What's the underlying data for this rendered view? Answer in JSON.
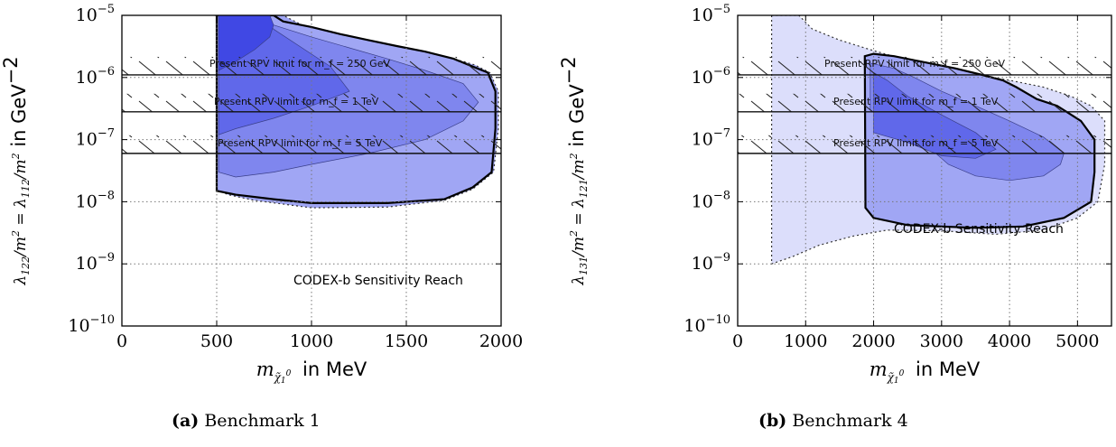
{
  "chart_data": [
    {
      "type": "area",
      "panel": "a",
      "caption_label": "(a)",
      "caption_text": "Benchmark 1",
      "xlabel": "m_{\\tilde\\chi_1^0} in MeV",
      "ylabel": "\\lambda_{122}/m_{\\tilde f}^2 = \\lambda_{112}/m_{\\tilde f}^2 in GeV^{-2}",
      "xlim": [
        0,
        2000
      ],
      "ylim": [
        1e-10,
        1e-05
      ],
      "yscale": "log",
      "grid": true,
      "x_ticks": [
        "0",
        "500",
        "1000",
        "1500",
        "2000"
      ],
      "y_ticks": [
        "10^-10",
        "10^-9",
        "10^-8",
        "10^-7",
        "10^-6",
        "10^-5"
      ],
      "annotation": "CODEX-b Sensitivity Reach",
      "limits": [
        {
          "label": "Present RPV limit for m_f = 250 GeV",
          "y": 1.1e-06
        },
        {
          "label": "Present RPV limit for m_f = 1 TeV",
          "y": 2.8e-07
        },
        {
          "label": "Present RPV limit for m_f = 5 TeV",
          "y": 6e-08
        }
      ],
      "regions": [
        {
          "level": "outer-dotted",
          "color": "#a0a6f4",
          "points": [
            [
              490,
              1e-05
            ],
            [
              500,
              1e-05
            ],
            [
              500,
              1.6e-08
            ],
            [
              560,
              1.3e-08
            ],
            [
              700,
              1.05e-08
            ],
            [
              1000,
              8e-09
            ],
            [
              1400,
              8.2e-09
            ],
            [
              1700,
              1.05e-08
            ],
            [
              1850,
              1.6e-08
            ],
            [
              1960,
              3e-08
            ],
            [
              1985,
              1.5e-07
            ],
            [
              1985,
              6e-07
            ],
            [
              1940,
              1.2e-06
            ],
            [
              1860,
              1.6e-06
            ],
            [
              1700,
              2.2e-06
            ],
            [
              1500,
              3e-06
            ],
            [
              1300,
              3.8e-06
            ],
            [
              1100,
              5e-06
            ],
            [
              950,
              7e-06
            ],
            [
              850,
              1e-05
            ]
          ]
        },
        {
          "level": "solid-boundary",
          "color": "#a0a6f4",
          "points": [
            [
              500,
              1e-05
            ],
            [
              500,
              1.5e-08
            ],
            [
              600,
              1.3e-08
            ],
            [
              800,
              1.1e-08
            ],
            [
              1000,
              9.5e-09
            ],
            [
              1400,
              9.5e-09
            ],
            [
              1700,
              1.1e-08
            ],
            [
              1850,
              1.7e-08
            ],
            [
              1950,
              3e-08
            ],
            [
              1970,
              1.5e-07
            ],
            [
              1970,
              6e-07
            ],
            [
              1930,
              1.2e-06
            ],
            [
              1850,
              1.5e-06
            ],
            [
              1750,
              2e-06
            ],
            [
              1600,
              2.6e-06
            ],
            [
              1450,
              3.2e-06
            ],
            [
              1300,
              4e-06
            ],
            [
              1150,
              5e-06
            ],
            [
              1000,
              6.5e-06
            ],
            [
              850,
              8e-06
            ],
            [
              800,
              1e-05
            ]
          ]
        },
        {
          "level": "middle",
          "color": "#7f86ee",
          "points": [
            [
              510,
              1e-05
            ],
            [
              510,
              3e-08
            ],
            [
              600,
              2.5e-08
            ],
            [
              800,
              3e-08
            ],
            [
              1000,
              4e-08
            ],
            [
              1300,
              6e-08
            ],
            [
              1600,
              1e-07
            ],
            [
              1800,
              2e-07
            ],
            [
              1880,
              4e-07
            ],
            [
              1800,
              8e-07
            ],
            [
              1600,
              1.3e-06
            ],
            [
              1400,
              2e-06
            ],
            [
              1200,
              3e-06
            ],
            [
              1000,
              4.5e-06
            ],
            [
              800,
              7e-06
            ],
            [
              700,
              1e-05
            ]
          ]
        },
        {
          "level": "inner",
          "color": "#6068ea",
          "points": [
            [
              510,
              1e-05
            ],
            [
              510,
              1.2e-07
            ],
            [
              600,
              1.5e-07
            ],
            [
              800,
              2.2e-07
            ],
            [
              1000,
              3.5e-07
            ],
            [
              1200,
              6e-07
            ],
            [
              1100,
              1.5e-06
            ],
            [
              950,
              3e-06
            ],
            [
              800,
              6e-06
            ],
            [
              720,
              1e-05
            ]
          ]
        },
        {
          "level": "core",
          "color": "#4048e4",
          "points": [
            [
              510,
              1e-05
            ],
            [
              510,
              1.3e-06
            ],
            [
              600,
              1.8e-06
            ],
            [
              700,
              2.8e-06
            ],
            [
              780,
              4.5e-06
            ],
            [
              800,
              7e-06
            ],
            [
              780,
              1e-05
            ]
          ]
        }
      ]
    },
    {
      "type": "area",
      "panel": "b",
      "caption_label": "(b)",
      "caption_text": "Benchmark 4",
      "xlabel": "m_{\\tilde\\chi_1^0} in MeV",
      "ylabel": "\\lambda_{131}/m_{\\tilde f}^2 = \\lambda_{121}/m_{\\tilde f}^2 in GeV^{-2}",
      "xlim": [
        0,
        5500
      ],
      "ylim": [
        1e-10,
        1e-05
      ],
      "yscale": "log",
      "grid": true,
      "x_ticks": [
        "0",
        "1000",
        "2000",
        "3000",
        "4000",
        "5000"
      ],
      "y_ticks": [
        "10^-10",
        "10^-9",
        "10^-8",
        "10^-7",
        "10^-6",
        "10^-5"
      ],
      "annotation": "CODEX-b Sensitivity Reach",
      "limits": [
        {
          "label": "Present RPV limit for m_f = 250 GeV",
          "y": 1.1e-06
        },
        {
          "label": "Present RPV limit for m_f = 1 TeV",
          "y": 2.8e-07
        },
        {
          "label": "Present RPV limit for m_f = 5 TeV",
          "y": 6e-08
        }
      ],
      "regions": [
        {
          "level": "outer-dotted",
          "color": "#dcdefb",
          "points": [
            [
              500,
              1e-05
            ],
            [
              500,
              1e-09
            ],
            [
              800,
              1.3e-09
            ],
            [
              1200,
              2e-09
            ],
            [
              1700,
              2.8e-09
            ],
            [
              2200,
              3.5e-09
            ],
            [
              3000,
              3.4e-09
            ],
            [
              3800,
              3e-09
            ],
            [
              4500,
              3.5e-09
            ],
            [
              5000,
              5.5e-09
            ],
            [
              5300,
              1e-08
            ],
            [
              5400,
              4e-08
            ],
            [
              5400,
              2e-07
            ],
            [
              5200,
              3.5e-07
            ],
            [
              4900,
              5e-07
            ],
            [
              4500,
              7e-07
            ],
            [
              4000,
              9e-07
            ],
            [
              3500,
              1.1e-06
            ],
            [
              3000,
              1.4e-06
            ],
            [
              2500,
              1.9e-06
            ],
            [
              2000,
              2.7e-06
            ],
            [
              1500,
              4e-06
            ],
            [
              1100,
              6e-06
            ],
            [
              900,
              1e-05
            ]
          ]
        },
        {
          "level": "solid-boundary",
          "color": "#a0a6f4",
          "points": [
            [
              1870,
              2.2e-06
            ],
            [
              1880,
              8e-09
            ],
            [
              2000,
              5.5e-09
            ],
            [
              2500,
              4.2e-09
            ],
            [
              3500,
              3.8e-09
            ],
            [
              4200,
              4e-09
            ],
            [
              4800,
              5.5e-09
            ],
            [
              5200,
              1e-08
            ],
            [
              5250,
              3e-08
            ],
            [
              5250,
              1e-07
            ],
            [
              5050,
              2e-07
            ],
            [
              4700,
              3.5e-07
            ],
            [
              4400,
              4.5e-07
            ],
            [
              4100,
              7e-07
            ],
            [
              3900,
              9e-07
            ],
            [
              3600,
              1.1e-06
            ],
            [
              3200,
              1.4e-06
            ],
            [
              2700,
              1.8e-06
            ],
            [
              2300,
              2.2e-06
            ],
            [
              2000,
              2.4e-06
            ]
          ]
        },
        {
          "level": "middle",
          "color": "#7f86ee",
          "points": [
            [
              1950,
              1.7e-06
            ],
            [
              1950,
              3e-07
            ],
            [
              2200,
              2e-07
            ],
            [
              2600,
              1.2e-07
            ],
            [
              3100,
              4e-08
            ],
            [
              3500,
              2.6e-08
            ],
            [
              4000,
              2.2e-08
            ],
            [
              4500,
              2.6e-08
            ],
            [
              4750,
              4e-08
            ],
            [
              4800,
              6e-08
            ],
            [
              4500,
              1.1e-07
            ],
            [
              4000,
              2e-07
            ],
            [
              3500,
              3.5e-07
            ],
            [
              3000,
              6e-07
            ],
            [
              2600,
              1e-06
            ],
            [
              2300,
              1.4e-06
            ]
          ]
        },
        {
          "level": "inner",
          "color": "#6068ea",
          "points": [
            [
              2000,
              1.2e-06
            ],
            [
              2000,
              1.3e-07
            ],
            [
              2500,
              9e-08
            ],
            [
              3000,
              5.5e-08
            ],
            [
              3500,
              5e-08
            ],
            [
              3800,
              7e-08
            ],
            [
              3500,
              1.3e-07
            ],
            [
              3000,
              2.5e-07
            ],
            [
              2500,
              5e-07
            ],
            [
              2200,
              9e-07
            ]
          ]
        }
      ]
    }
  ]
}
